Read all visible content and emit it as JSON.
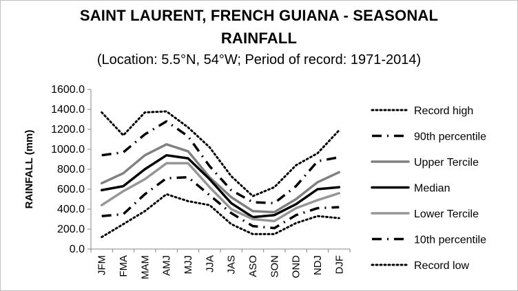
{
  "chart_data": {
    "type": "line",
    "title_line1": "SAINT LAURENT, FRENCH GUIANA - SEASONAL",
    "title_line2": "RAINFALL",
    "subtitle": "(Location: 5.5°N, 54°W; Period of record: 1971-2014)",
    "xlabel": "",
    "ylabel": "RAINFALL (mm)",
    "ylim": [
      0,
      1600
    ],
    "yticks": [
      "0.0",
      "200.0",
      "400.0",
      "600.0",
      "800.0",
      "1000.0",
      "1200.0",
      "1400.0",
      "1600.0"
    ],
    "categories": [
      "JFM",
      "FMA",
      "MAM",
      "AMJ",
      "MJJ",
      "JJA",
      "JAS",
      "ASO",
      "SON",
      "OND",
      "NDJ",
      "DJF"
    ],
    "legend_position": "right",
    "grid": false,
    "series": [
      {
        "name": "Record high",
        "style": "dotted",
        "color": "#000000",
        "values": [
          1370,
          1140,
          1370,
          1380,
          1220,
          1020,
          730,
          530,
          620,
          840,
          960,
          1190
        ]
      },
      {
        "name": "90th percentile",
        "style": "dashdot",
        "color": "#000000",
        "values": [
          940,
          970,
          1150,
          1280,
          1130,
          830,
          590,
          470,
          460,
          630,
          880,
          920
        ]
      },
      {
        "name": "Upper Tercile",
        "style": "solid",
        "color": "#808080",
        "values": [
          660,
          760,
          940,
          1050,
          980,
          720,
          520,
          380,
          370,
          500,
          670,
          770
        ]
      },
      {
        "name": "Median",
        "style": "solid",
        "color": "#000000",
        "values": [
          590,
          630,
          800,
          940,
          910,
          700,
          460,
          320,
          340,
          450,
          600,
          620
        ]
      },
      {
        "name": "Lower Tercile",
        "style": "solid",
        "color": "#969696",
        "values": [
          440,
          580,
          700,
          860,
          860,
          620,
          400,
          300,
          280,
          410,
          490,
          560
        ]
      },
      {
        "name": "10th percentile",
        "style": "dashdot",
        "color": "#000000",
        "values": [
          330,
          350,
          550,
          710,
          720,
          540,
          360,
          230,
          210,
          340,
          410,
          420
        ]
      },
      {
        "name": "Record low",
        "style": "dotted",
        "color": "#000000",
        "values": [
          120,
          250,
          380,
          550,
          480,
          440,
          250,
          150,
          150,
          260,
          330,
          310
        ]
      }
    ]
  }
}
